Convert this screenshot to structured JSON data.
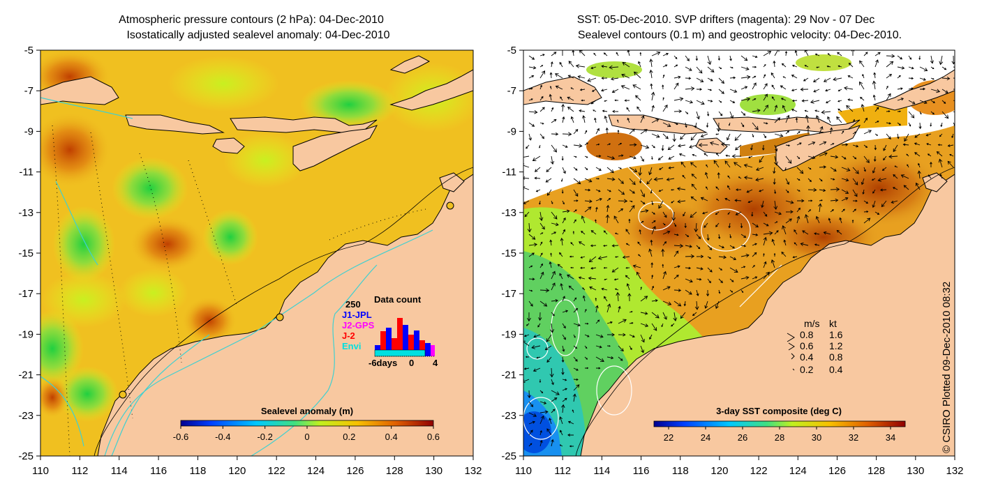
{
  "left_panel": {
    "title_line1": "Atmospheric pressure contours (2 hPa): 04-Dec-2010",
    "title_line2": "Isostatically adjusted sealevel anomaly: 04-Dec-2010",
    "y_ticks": [
      "-5",
      "-7",
      "-9",
      "-11",
      "-13",
      "-15",
      "-17",
      "-19",
      "-21",
      "-23",
      "-25"
    ],
    "x_ticks": [
      "110",
      "112",
      "114",
      "116",
      "118",
      "120",
      "122",
      "124",
      "126",
      "128",
      "130",
      "132"
    ],
    "colorbar": {
      "title": "Sealevel anomaly (m)",
      "ticks": [
        "-0.6",
        "-0.4",
        "-0.2",
        "0",
        "0.2",
        "0.4",
        "0.6"
      ]
    },
    "data_count": {
      "title": "Data count",
      "max_label": "250",
      "legend": [
        {
          "label": "J1-JPL",
          "color": "#0000ff"
        },
        {
          "label": "J2-GPS",
          "color": "#ff00ff"
        },
        {
          "label": "J-2",
          "color": "#ff0000"
        },
        {
          "label": "Envi",
          "color": "#00e0e0"
        }
      ],
      "x_labels": [
        "-6days",
        "0",
        "4"
      ]
    }
  },
  "right_panel": {
    "title_line1": "SST: 05-Dec-2010. SVP drifters (magenta): 29 Nov - 07 Dec",
    "title_line2": "Sealevel contours (0.1 m) and geostrophic velocity: 04-Dec-2010.",
    "y_ticks": [
      "-5",
      "-7",
      "-9",
      "-11",
      "-13",
      "-15",
      "-17",
      "-19",
      "-21",
      "-23",
      "-25"
    ],
    "x_ticks": [
      "110",
      "112",
      "114",
      "116",
      "118",
      "120",
      "122",
      "124",
      "126",
      "128",
      "130",
      "132"
    ],
    "colorbar": {
      "title": "3-day SST composite (deg C)",
      "ticks": [
        "22",
        "24",
        "26",
        "28",
        "30",
        "32",
        "34"
      ]
    },
    "velocity_legend": {
      "header_ms": "m/s",
      "header_kt": "kt",
      "rows": [
        {
          "ms": "0.8",
          "kt": "1.6"
        },
        {
          "ms": "0.6",
          "kt": "1.2"
        },
        {
          "ms": "0.4",
          "kt": "0.8"
        },
        {
          "ms": "0.2",
          "kt": "0.4"
        }
      ]
    }
  },
  "copyright": "© CSIRO Plotted 09-Dec-2010 08:32",
  "colors": {
    "land": "#f8c8a0",
    "ocean_base_left": "#f0c020",
    "coast_line": "#000000",
    "bathymetry_contour": "#40d0d0",
    "missing_sst": "#ffffff"
  }
}
